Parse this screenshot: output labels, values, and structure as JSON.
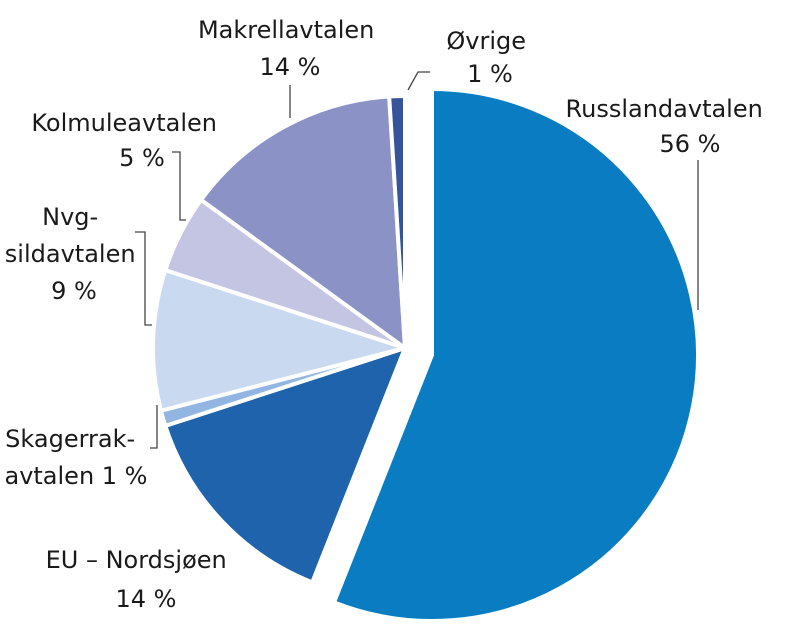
{
  "chart_data": {
    "type": "pie",
    "title": "",
    "slices": [
      {
        "name": "Russlandavtalen",
        "value": 56,
        "value_label": "56 %",
        "color": "#0a7cc1",
        "exploded": true
      },
      {
        "name": "EU – Nordsjøen",
        "value": 14,
        "value_label": "14 %",
        "color": "#1f63ad",
        "exploded": false
      },
      {
        "name": "Skagerrak-avtalen",
        "value": 1,
        "value_label": "1 %",
        "color": "#92b5e2",
        "exploded": false
      },
      {
        "name": "Nvg-sildavtalen",
        "value": 9,
        "value_label": "9 %",
        "color": "#c8d9f0",
        "exploded": false
      },
      {
        "name": "Kolmuleavtalen",
        "value": 5,
        "value_label": "5 %",
        "color": "#c3c5e3",
        "exploded": false
      },
      {
        "name": "Makrellavtalen",
        "value": 14,
        "value_label": "14 %",
        "color": "#8b92c5",
        "exploded": false
      },
      {
        "name": "Øvrige",
        "value": 1,
        "value_label": "1 %",
        "color": "#36549c",
        "exploded": false
      }
    ],
    "labels": {
      "russland": [
        "Russlandavtalen",
        "56 %"
      ],
      "eu": [
        "EU – Nordsjøen",
        "14 %"
      ],
      "skagerrak": [
        "Skagerrak-",
        "avtalen 1 %"
      ],
      "nvg": [
        "Nvg-",
        "sildavtalen",
        "9 %"
      ],
      "kolmule": [
        "Kolmuleavtalen",
        "5 %"
      ],
      "makrell": [
        "Makrellavtalen",
        "14 %"
      ],
      "ovrige": [
        "Øvrige",
        "1 %"
      ]
    }
  }
}
